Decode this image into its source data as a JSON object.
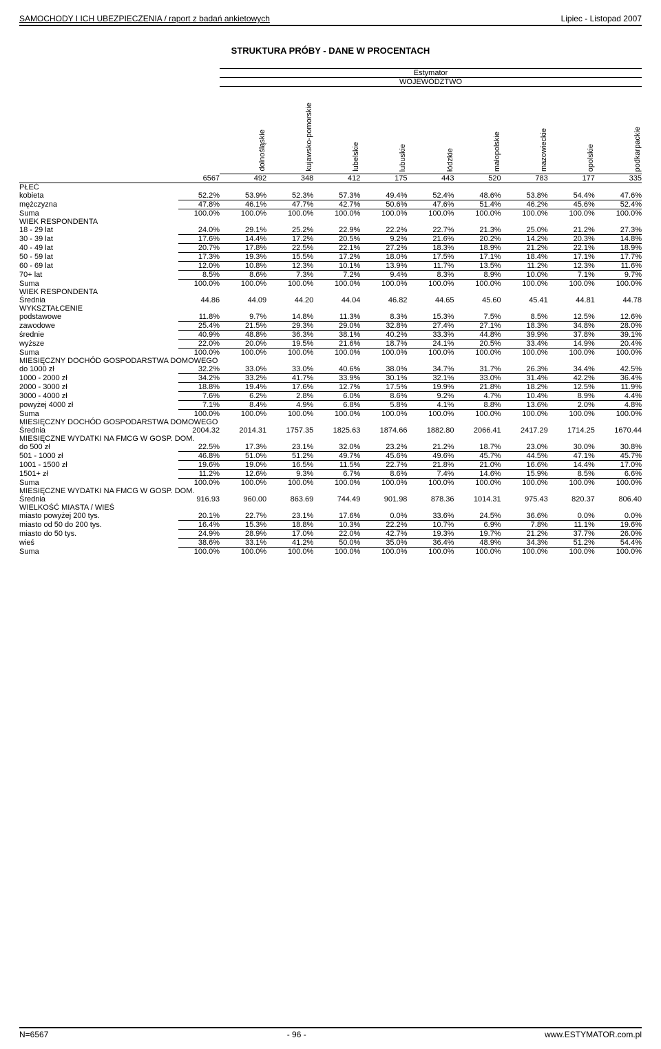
{
  "header": {
    "report_title": "SAMOCHODY I ICH UBEZPIECZENIA / raport z badań ankietowych",
    "date_range": "Lipiec - Listopad 2007"
  },
  "section_title": "STRUKTURA PRÓBY - DANE W PROCENTACH",
  "table_headers": {
    "estimator_label": "Estymator",
    "wojewodztwo_label": "WOJEWÓDZTWO",
    "total_count": "6567",
    "columns": [
      {
        "name": "dolnośląskie",
        "count": "492"
      },
      {
        "name": "kujawsko-pomorskie",
        "count": "348"
      },
      {
        "name": "lubelskie",
        "count": "412"
      },
      {
        "name": "lubuskie",
        "count": "175"
      },
      {
        "name": "łódzkie",
        "count": "443"
      },
      {
        "name": "małopolskie",
        "count": "520"
      },
      {
        "name": "mazowieckie",
        "count": "783"
      },
      {
        "name": "opolskie",
        "count": "177"
      },
      {
        "name": "podkarpackie",
        "count": "335"
      }
    ]
  },
  "sections": [
    {
      "group": "PŁEĆ",
      "rows": [
        {
          "label": "kobieta",
          "vals": [
            "52.2%",
            "53.9%",
            "52.3%",
            "57.3%",
            "49.4%",
            "52.4%",
            "48.6%",
            "53.8%",
            "54.4%",
            "47.6%"
          ],
          "line": true
        },
        {
          "label": "mężczyzna",
          "vals": [
            "47.8%",
            "46.1%",
            "47.7%",
            "42.7%",
            "50.6%",
            "47.6%",
            "51.4%",
            "46.2%",
            "45.6%",
            "52.4%"
          ],
          "line": true
        },
        {
          "label": "Suma",
          "vals": [
            "100.0%",
            "100.0%",
            "100.0%",
            "100.0%",
            "100.0%",
            "100.0%",
            "100.0%",
            "100.0%",
            "100.0%",
            "100.0%"
          ]
        }
      ]
    },
    {
      "group": "WIEK RESPONDENTA",
      "rows": [
        {
          "label": "18 - 29 lat",
          "vals": [
            "24.0%",
            "29.1%",
            "25.2%",
            "22.9%",
            "22.2%",
            "22.7%",
            "21.3%",
            "25.0%",
            "21.2%",
            "27.3%"
          ],
          "line": true
        },
        {
          "label": "30 - 39 lat",
          "vals": [
            "17.6%",
            "14.4%",
            "17.2%",
            "20.5%",
            "9.2%",
            "21.6%",
            "20.2%",
            "14.2%",
            "20.3%",
            "14.8%"
          ],
          "line": true
        },
        {
          "label": "40 - 49 lat",
          "vals": [
            "20.7%",
            "17.8%",
            "22.5%",
            "22.1%",
            "27.2%",
            "18.3%",
            "18.9%",
            "21.2%",
            "22.1%",
            "18.9%"
          ],
          "line": true
        },
        {
          "label": "50 - 59 lat",
          "vals": [
            "17.3%",
            "19.3%",
            "15.5%",
            "17.2%",
            "18.0%",
            "17.5%",
            "17.1%",
            "18.4%",
            "17.1%",
            "17.7%"
          ],
          "line": true
        },
        {
          "label": "60 - 69 lat",
          "vals": [
            "12.0%",
            "10.8%",
            "12.3%",
            "10.1%",
            "13.9%",
            "11.7%",
            "13.5%",
            "11.2%",
            "12.3%",
            "11.6%"
          ],
          "line": true
        },
        {
          "label": "70+ lat",
          "vals": [
            "8.5%",
            "8.6%",
            "7.3%",
            "7.2%",
            "9.4%",
            "8.3%",
            "8.9%",
            "10.0%",
            "7.1%",
            "9.7%"
          ],
          "line": true
        },
        {
          "label": "Suma",
          "vals": [
            "100.0%",
            "100.0%",
            "100.0%",
            "100.0%",
            "100.0%",
            "100.0%",
            "100.0%",
            "100.0%",
            "100.0%",
            "100.0%"
          ]
        }
      ]
    },
    {
      "group": "WIEK RESPONDENTA",
      "rows": [
        {
          "label": "Średnia",
          "vals": [
            "44.86",
            "44.09",
            "44.20",
            "44.04",
            "46.82",
            "44.65",
            "45.60",
            "45.41",
            "44.81",
            "44.78"
          ]
        }
      ]
    },
    {
      "group": "WYKSZTAŁCENIE",
      "rows": [
        {
          "label": "podstawowe",
          "vals": [
            "11.8%",
            "9.7%",
            "14.8%",
            "11.3%",
            "8.3%",
            "15.3%",
            "7.5%",
            "8.5%",
            "12.5%",
            "12.6%"
          ],
          "line": true
        },
        {
          "label": "zawodowe",
          "vals": [
            "25.4%",
            "21.5%",
            "29.3%",
            "29.0%",
            "32.8%",
            "27.4%",
            "27.1%",
            "18.3%",
            "34.8%",
            "28.0%"
          ],
          "line": true
        },
        {
          "label": "średnie",
          "vals": [
            "40.9%",
            "48.8%",
            "36.3%",
            "38.1%",
            "40.2%",
            "33.3%",
            "44.8%",
            "39.9%",
            "37.8%",
            "39.1%"
          ],
          "line": true
        },
        {
          "label": "wyższe",
          "vals": [
            "22.0%",
            "20.0%",
            "19.5%",
            "21.6%",
            "18.7%",
            "24.1%",
            "20.5%",
            "33.4%",
            "14.9%",
            "20.4%"
          ],
          "line": true
        },
        {
          "label": "Suma",
          "vals": [
            "100.0%",
            "100.0%",
            "100.0%",
            "100.0%",
            "100.0%",
            "100.0%",
            "100.0%",
            "100.0%",
            "100.0%",
            "100.0%"
          ]
        }
      ]
    },
    {
      "group": "MIESIĘCZNY DOCHÓD GOSPODARSTWA DOMOWEGO",
      "rows": [
        {
          "label": "do 1000 zł",
          "vals": [
            "32.2%",
            "33.0%",
            "33.0%",
            "40.6%",
            "38.0%",
            "34.7%",
            "31.7%",
            "26.3%",
            "34.4%",
            "42.5%"
          ],
          "line": true
        },
        {
          "label": "1000 - 2000 zł",
          "vals": [
            "34.2%",
            "33.2%",
            "41.7%",
            "33.9%",
            "30.1%",
            "32.1%",
            "33.0%",
            "31.4%",
            "42.2%",
            "36.4%"
          ],
          "line": true
        },
        {
          "label": "2000 - 3000 zł",
          "vals": [
            "18.8%",
            "19.4%",
            "17.6%",
            "12.7%",
            "17.5%",
            "19.9%",
            "21.8%",
            "18.2%",
            "12.5%",
            "11.9%"
          ],
          "line": true
        },
        {
          "label": "3000 - 4000 zł",
          "vals": [
            "7.6%",
            "6.2%",
            "2.8%",
            "6.0%",
            "8.6%",
            "9.2%",
            "4.7%",
            "10.4%",
            "8.9%",
            "4.4%"
          ],
          "line": true
        },
        {
          "label": "powyżej 4000 zł",
          "vals": [
            "7.1%",
            "8.4%",
            "4.9%",
            "6.8%",
            "5.8%",
            "4.1%",
            "8.8%",
            "13.6%",
            "2.0%",
            "4.8%"
          ],
          "line": true
        },
        {
          "label": "Suma",
          "vals": [
            "100.0%",
            "100.0%",
            "100.0%",
            "100.0%",
            "100.0%",
            "100.0%",
            "100.0%",
            "100.0%",
            "100.0%",
            "100.0%"
          ]
        }
      ]
    },
    {
      "group": "MIESIĘCZNY DOCHÓD GOSPODARSTWA DOMOWEGO",
      "rows": [
        {
          "label": "Średnia",
          "vals": [
            "2004.32",
            "2014.31",
            "1757.35",
            "1825.63",
            "1874.66",
            "1882.80",
            "2066.41",
            "2417.29",
            "1714.25",
            "1670.44"
          ]
        }
      ]
    },
    {
      "group": "MIESIĘCZNE WYDATKI NA FMCG W GOSP. DOM.",
      "rows": [
        {
          "label": "do 500 zł",
          "vals": [
            "22.5%",
            "17.3%",
            "23.1%",
            "32.0%",
            "23.2%",
            "21.2%",
            "18.7%",
            "23.0%",
            "30.0%",
            "30.8%"
          ],
          "line": true
        },
        {
          "label": "501 - 1000 zł",
          "vals": [
            "46.8%",
            "51.0%",
            "51.2%",
            "49.7%",
            "45.6%",
            "49.6%",
            "45.7%",
            "44.5%",
            "47.1%",
            "45.7%"
          ],
          "line": true
        },
        {
          "label": "1001 - 1500 zł",
          "vals": [
            "19.6%",
            "19.0%",
            "16.5%",
            "11.5%",
            "22.7%",
            "21.8%",
            "21.0%",
            "16.6%",
            "14.4%",
            "17.0%"
          ],
          "line": true
        },
        {
          "label": "1501+ zł",
          "vals": [
            "11.2%",
            "12.6%",
            "9.3%",
            "6.7%",
            "8.6%",
            "7.4%",
            "14.6%",
            "15.9%",
            "8.5%",
            "6.6%"
          ],
          "line": true
        },
        {
          "label": "Suma",
          "vals": [
            "100.0%",
            "100.0%",
            "100.0%",
            "100.0%",
            "100.0%",
            "100.0%",
            "100.0%",
            "100.0%",
            "100.0%",
            "100.0%"
          ]
        }
      ]
    },
    {
      "group": "MIESIĘCZNE WYDATKI NA FMCG W GOSP. DOM.",
      "rows": [
        {
          "label": "Średnia",
          "vals": [
            "916.93",
            "960.00",
            "863.69",
            "744.49",
            "901.98",
            "878.36",
            "1014.31",
            "975.43",
            "820.37",
            "806.40"
          ]
        }
      ]
    },
    {
      "group": "WIELKOŚĆ MIASTA / WIEŚ",
      "rows": [
        {
          "label": "miasto powyżej 200 tys.",
          "vals": [
            "20.1%",
            "22.7%",
            "23.1%",
            "17.6%",
            "0.0%",
            "33.6%",
            "24.5%",
            "36.6%",
            "0.0%",
            "0.0%"
          ],
          "line": true
        },
        {
          "label": "miasto od 50 do 200 tys.",
          "vals": [
            "16.4%",
            "15.3%",
            "18.8%",
            "10.3%",
            "22.2%",
            "10.7%",
            "6.9%",
            "7.8%",
            "11.1%",
            "19.6%"
          ],
          "line": true
        },
        {
          "label": "miasto do 50 tys.",
          "vals": [
            "24.9%",
            "28.9%",
            "17.0%",
            "22.0%",
            "42.7%",
            "19.3%",
            "19.7%",
            "21.2%",
            "37.7%",
            "26.0%"
          ],
          "line": true
        },
        {
          "label": "wieś",
          "vals": [
            "38.6%",
            "33.1%",
            "41.2%",
            "50.0%",
            "35.0%",
            "36.4%",
            "48.9%",
            "34.3%",
            "51.2%",
            "54.4%"
          ],
          "line": true
        },
        {
          "label": "Suma",
          "vals": [
            "100.0%",
            "100.0%",
            "100.0%",
            "100.0%",
            "100.0%",
            "100.0%",
            "100.0%",
            "100.0%",
            "100.0%",
            "100.0%"
          ]
        }
      ]
    }
  ],
  "footer": {
    "left": "N=6567",
    "center": "- 96 -",
    "right": "www.ESTYMATOR.com.pl"
  }
}
